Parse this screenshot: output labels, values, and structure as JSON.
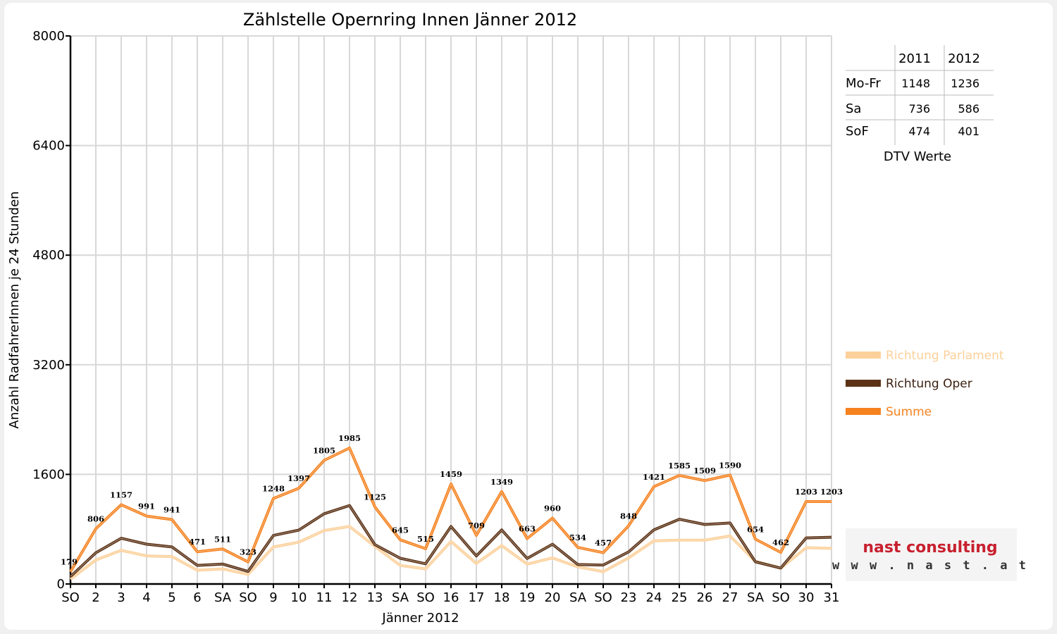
{
  "chart_data": {
    "type": "line",
    "title": "Zählstelle Opernring Innen Jänner 2012",
    "xlabel": "Jänner 2012",
    "ylabel": "Anzahl RadfahrerInnen je 24 Stunden",
    "ylim": [
      0,
      8000
    ],
    "yticks": [
      "0",
      "1600",
      "3200",
      "4800",
      "6400",
      "8000"
    ],
    "grid": true,
    "legend_position": "right",
    "categories": [
      "SO",
      "2",
      "3",
      "4",
      "5",
      "6",
      "SA",
      "SO",
      "9",
      "10",
      "11",
      "12",
      "13",
      "SA",
      "SO",
      "16",
      "17",
      "18",
      "19",
      "20",
      "SA",
      "SO",
      "23",
      "24",
      "25",
      "26",
      "27",
      "SA",
      "SO",
      "30",
      "31"
    ],
    "red_categories": [
      0,
      5,
      7,
      14,
      21,
      28
    ],
    "series": [
      {
        "name": "Richtung Parlament",
        "color": "#fcd09a",
        "values": [
          70,
          350,
          490,
          410,
          400,
          200,
          220,
          140,
          540,
          610,
          780,
          840,
          550,
          270,
          220,
          620,
          300,
          560,
          290,
          380,
          250,
          180,
          380,
          630,
          640,
          640,
          700,
          330,
          230,
          530,
          520
        ]
      },
      {
        "name": "Richtung Oper",
        "color": "#5c3317",
        "values": [
          109,
          456,
          667,
          581,
          541,
          271,
          291,
          183,
          708,
          787,
          1025,
          1145,
          575,
          375,
          295,
          839,
          409,
          789,
          373,
          580,
          284,
          277,
          468,
          791,
          945,
          869,
          890,
          324,
          232,
          673,
          683
        ]
      },
      {
        "name": "Summe",
        "color": "#f5821f",
        "values": [
          179,
          806,
          1157,
          991,
          941,
          471,
          511,
          323,
          1248,
          1397,
          1805,
          1985,
          1125,
          645,
          515,
          1459,
          709,
          1349,
          663,
          960,
          534,
          457,
          848,
          1421,
          1585,
          1509,
          1590,
          654,
          462,
          1203,
          1203
        ]
      }
    ],
    "data_labels": [
      "179",
      "806",
      "1157",
      "991",
      "941",
      "471",
      "511",
      "323",
      "1248",
      "1397",
      "1805",
      "1985",
      "1125",
      "645",
      "515",
      "1459",
      "709",
      "1349",
      "663",
      "960",
      "534",
      "457",
      "848",
      "1421",
      "1585",
      "1509",
      "1590",
      "654",
      "462",
      "1203",
      "1203"
    ]
  },
  "table": {
    "headers": [
      "",
      "2011",
      "2012"
    ],
    "rows": [
      {
        "label": "Mo-Fr",
        "v2011": "1148",
        "v2012": "1236"
      },
      {
        "label": "Sa",
        "v2011": "736",
        "v2012": "586"
      },
      {
        "label": "SoF",
        "v2011": "474",
        "v2012": "401"
      }
    ],
    "caption": "DTV Werte"
  },
  "logo": {
    "name": "nast consulting",
    "url": "w w w . n a s t . a t",
    "color": "#c8202f"
  }
}
